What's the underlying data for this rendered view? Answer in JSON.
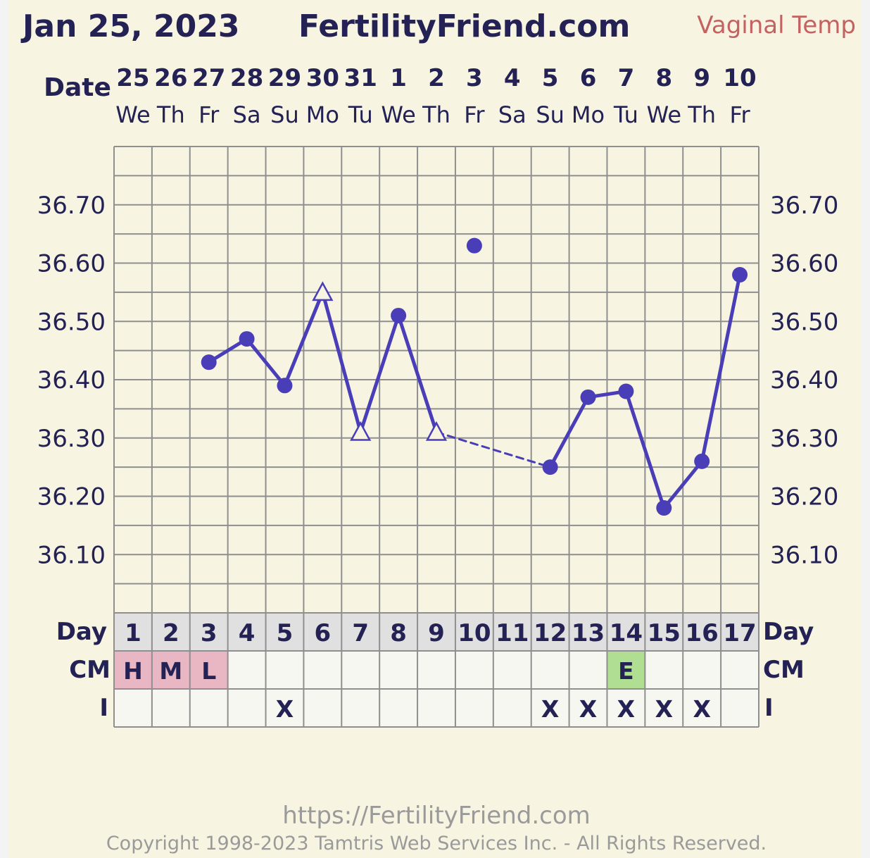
{
  "header": {
    "date": "Jan 25, 2023",
    "site": "FertilityFriend.com",
    "temp_type": "Vaginal Temp"
  },
  "row_labels": {
    "date": "Date",
    "day": "Day",
    "cm": "CM",
    "i": "I"
  },
  "footer": {
    "url": "https://FertilityFriend.com",
    "copyright": "Copyright 1998-2023 Tamtris Web Services Inc. - All Rights Reserved."
  },
  "colors": {
    "line": "#4a3eb8",
    "grid": "#8f8f8f",
    "cm_menstrual": "#e9b6c4",
    "cm_egg_white": "#b0df94",
    "day_row": "#e0e0e0",
    "cell": "#f7f7f2"
  },
  "chart_data": {
    "type": "line",
    "ylabel": "",
    "xlabel": "",
    "yticks": [
      "36.70",
      "36.60",
      "36.50",
      "36.40",
      "36.30",
      "36.20",
      "36.10"
    ],
    "ylim": [
      36.0,
      36.8
    ],
    "dates": [
      "25",
      "26",
      "27",
      "28",
      "29",
      "30",
      "31",
      "1",
      "2",
      "3",
      "4",
      "5",
      "6",
      "7",
      "8",
      "9",
      "10"
    ],
    "weekdays": [
      "We",
      "Th",
      "Fr",
      "Sa",
      "Su",
      "Mo",
      "Tu",
      "We",
      "Th",
      "Fr",
      "Sa",
      "Su",
      "Mo",
      "Tu",
      "We",
      "Th",
      "Fr"
    ],
    "cycle_days": [
      "1",
      "2",
      "3",
      "4",
      "5",
      "6",
      "7",
      "8",
      "9",
      "10",
      "11",
      "12",
      "13",
      "14",
      "15",
      "16",
      "17"
    ],
    "temps": [
      null,
      null,
      36.43,
      36.47,
      36.39,
      36.55,
      36.31,
      36.51,
      36.31,
      36.63,
      null,
      36.25,
      36.37,
      36.38,
      36.18,
      36.26,
      36.58
    ],
    "markers": [
      "",
      "",
      "dot",
      "dot",
      "dot",
      "triangle",
      "triangle",
      "dot",
      "triangle",
      "dot-excluded",
      "",
      "dot",
      "dot",
      "dot",
      "dot",
      "dot",
      "dot"
    ],
    "dashed_segments": [
      [
        8,
        11
      ]
    ],
    "cervical_mucus": [
      "H",
      "M",
      "L",
      "",
      "",
      "",
      "",
      "",
      "",
      "",
      "",
      "",
      "",
      "E",
      "",
      "",
      ""
    ],
    "intercourse": [
      "",
      "",
      "",
      "",
      "X",
      "",
      "",
      "",
      "",
      "",
      "",
      "X",
      "X",
      "X",
      "X",
      "X",
      ""
    ],
    "grid": true,
    "legend": "none"
  }
}
